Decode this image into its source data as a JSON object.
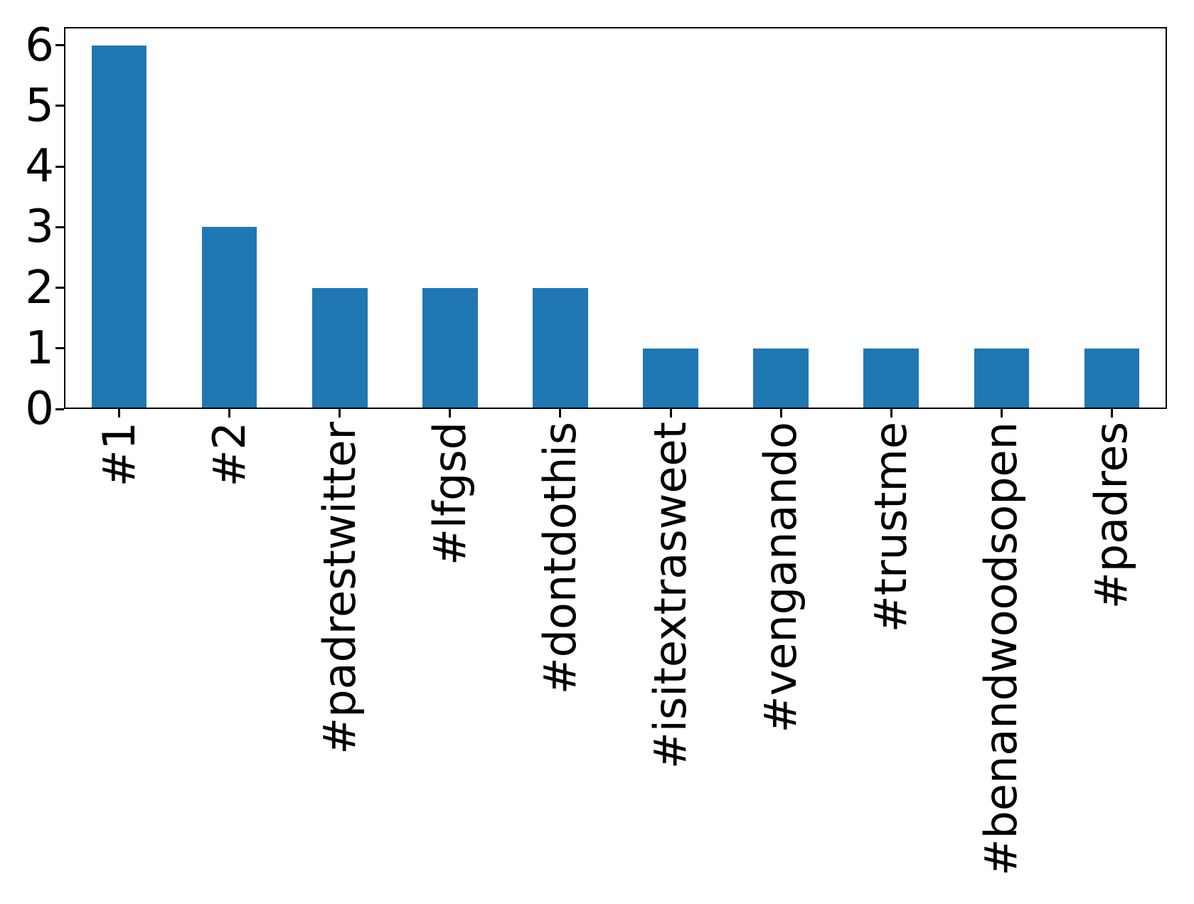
{
  "chart_data": {
    "type": "bar",
    "title": "",
    "xlabel": "",
    "ylabel": "",
    "categories": [
      "#1",
      "#2",
      "#padrestwitter",
      "#lfgsd",
      "#dontdothis",
      "#isitextrasweet",
      "#venganando",
      "#trustme",
      "#benandwoodsopen",
      "#padres"
    ],
    "values": [
      6,
      3,
      2,
      2,
      2,
      1,
      1,
      1,
      1,
      1
    ],
    "yticks": [
      0,
      1,
      2,
      3,
      4,
      5,
      6
    ],
    "ylim": [
      0,
      6.3
    ],
    "bar_color": "#1f77b4",
    "axis_color": "#000000",
    "background_color": "#ffffff",
    "grid": false,
    "legend": false,
    "bar_width_fraction": 0.5,
    "x_tick_rotation_deg": 90
  }
}
